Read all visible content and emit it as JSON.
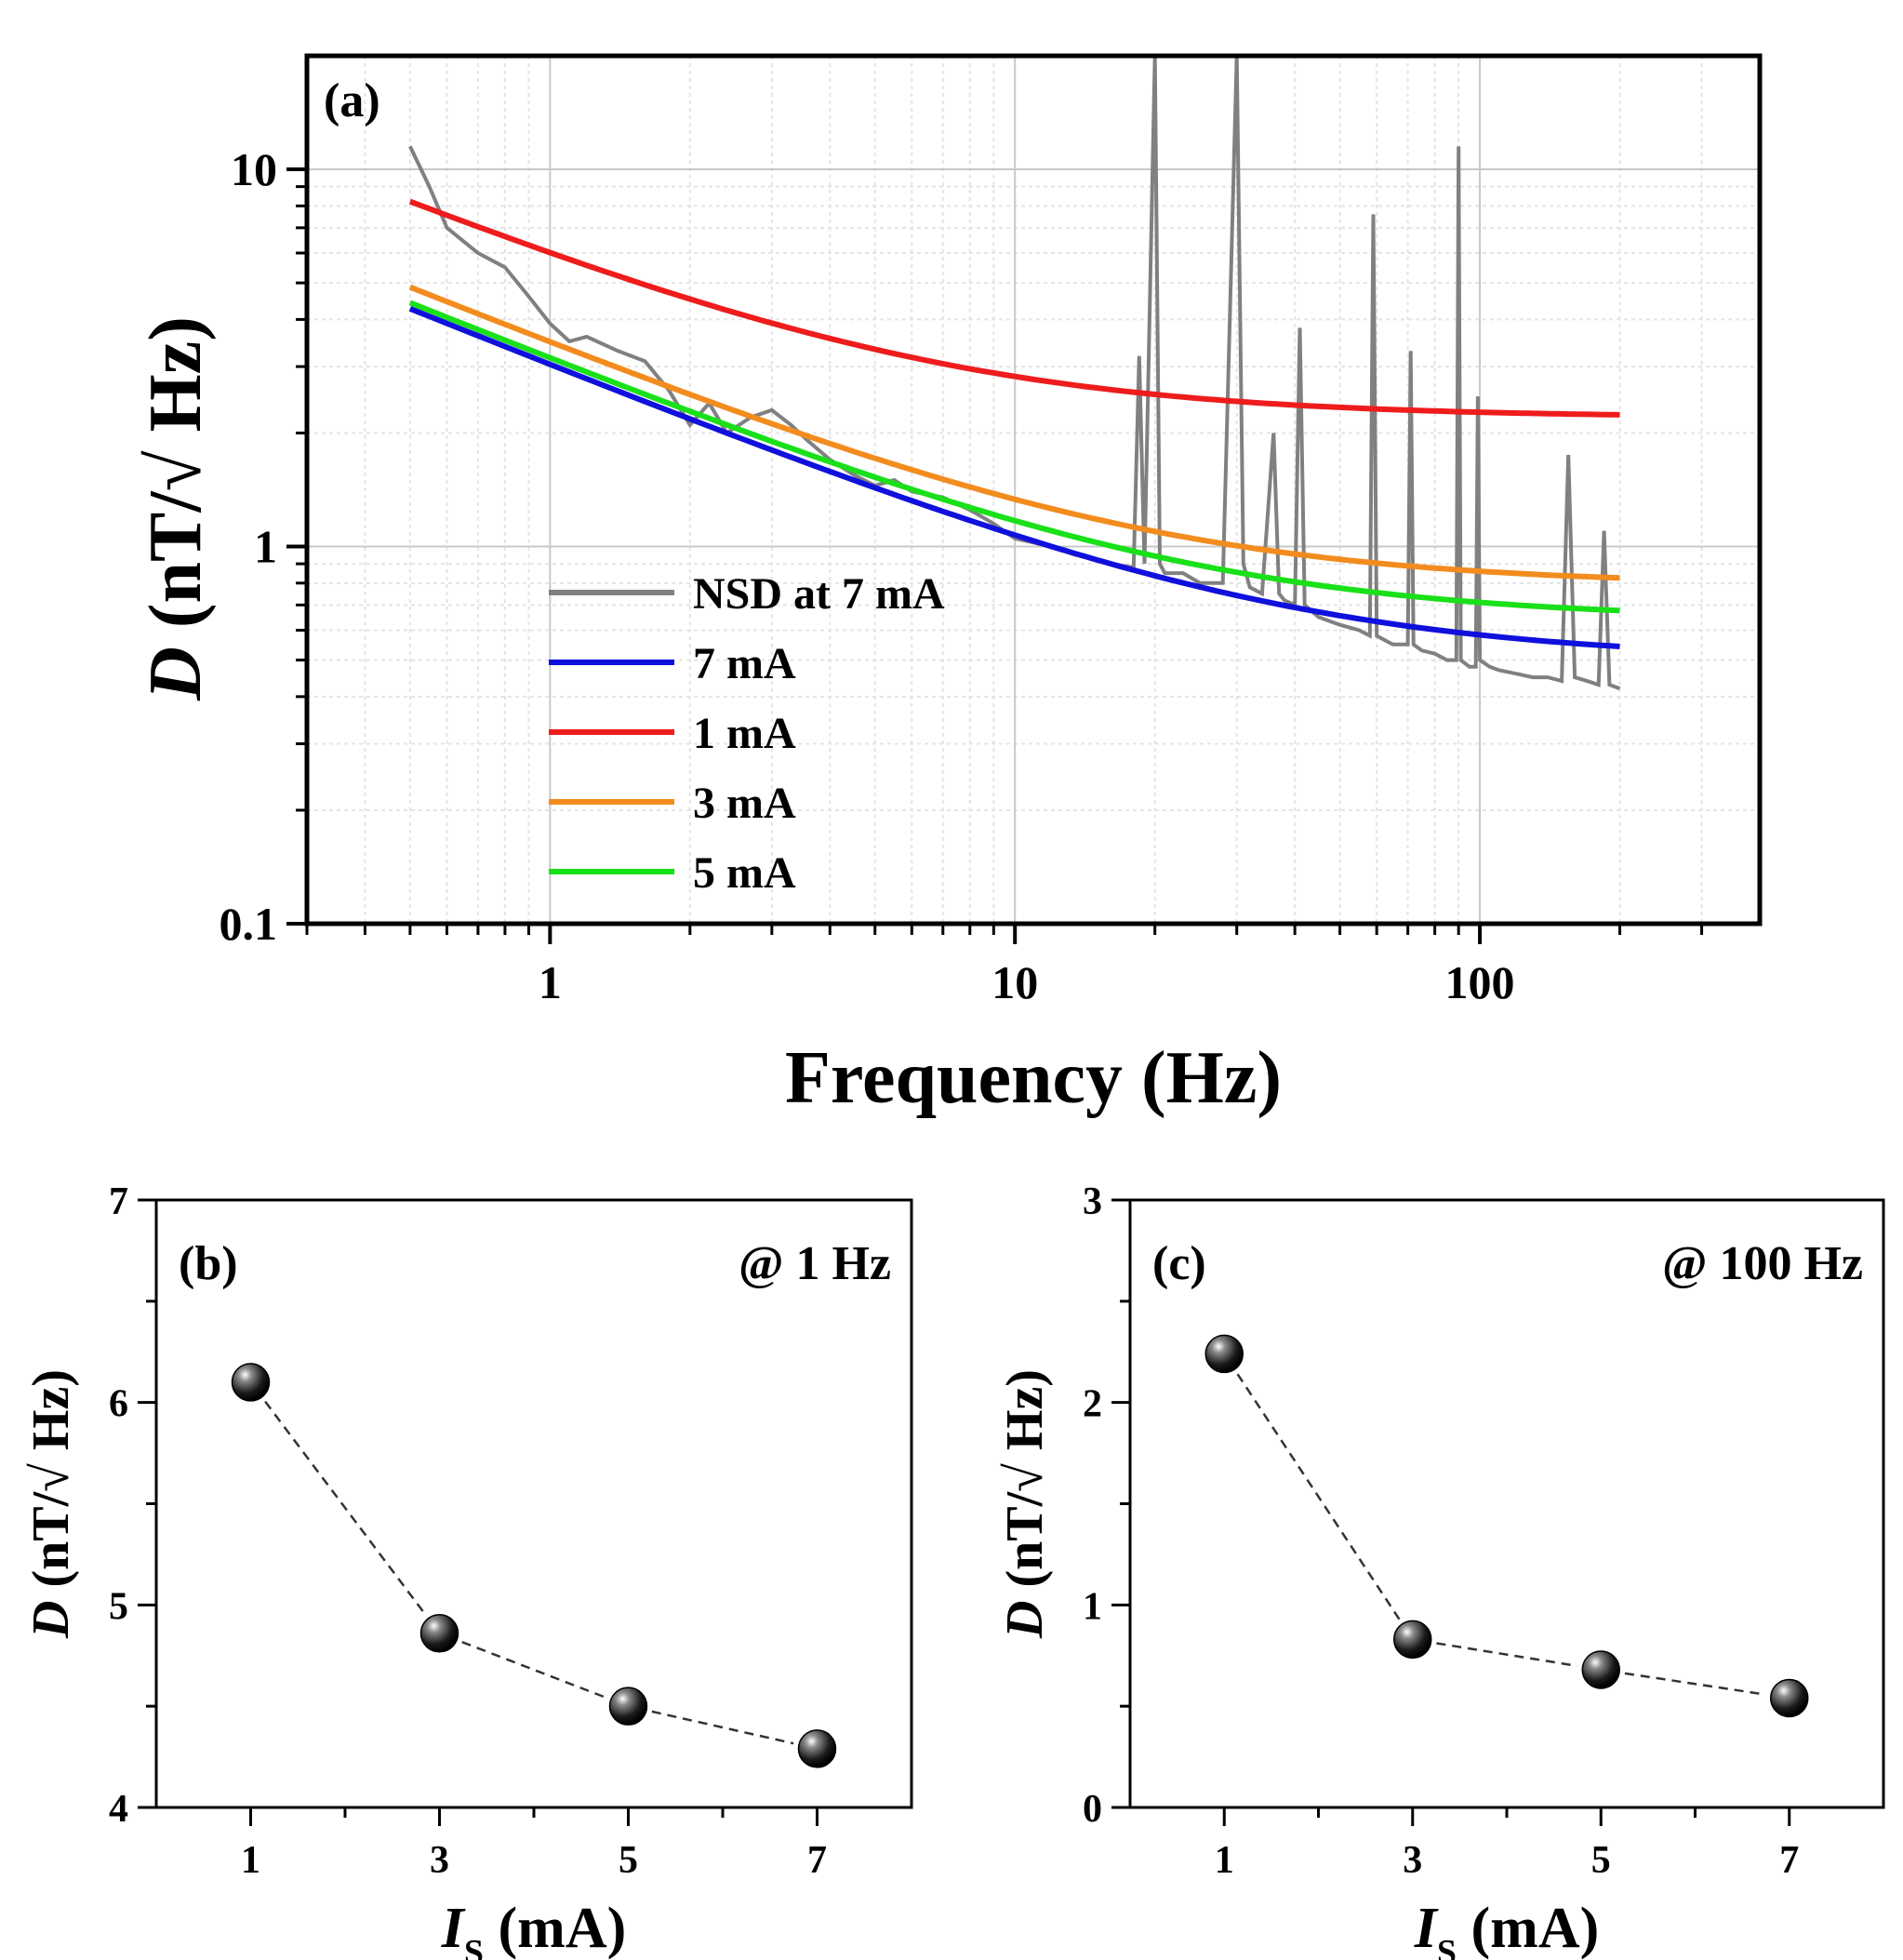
{
  "chart_data": [
    {
      "type": "line",
      "panel_label": "(a)",
      "title": "",
      "xlabel": "Frequency (Hz)",
      "ylabel_italic": "D",
      "ylabel_rest": " (nT/√ Hz)",
      "xscale": "log",
      "yscale": "log",
      "xlim": [
        0.3,
        400
      ],
      "ylim": [
        0.1,
        20
      ],
      "xticks": [
        1,
        10,
        100
      ],
      "xtick_labels": [
        "1",
        "10",
        "100"
      ],
      "yticks": [
        0.1,
        1,
        10
      ],
      "ytick_labels": [
        "0.1",
        "1",
        "10"
      ],
      "grid": true,
      "legend_position": "lower-left",
      "series": [
        {
          "name": "NSD at 7 mA",
          "color": "#808080",
          "x": [
            0.5,
            0.55,
            0.6,
            0.7,
            0.8,
            0.9,
            1.0,
            1.1,
            1.2,
            1.4,
            1.6,
            1.8,
            2.0,
            2.2,
            2.4,
            2.7,
            3.0,
            3.3,
            3.6,
            4.0,
            4.5,
            5,
            5.5,
            6,
            7,
            8,
            9,
            10,
            12,
            14,
            16,
            18,
            18.5,
            19,
            20,
            20.5,
            21,
            23,
            25,
            28,
            30,
            31,
            32,
            34,
            36,
            37,
            38,
            40,
            41,
            42,
            45,
            50,
            55,
            58,
            59,
            60,
            65,
            70,
            71,
            72,
            75,
            80,
            85,
            89,
            90,
            91,
            95,
            98,
            99,
            100,
            105,
            110,
            120,
            130,
            140,
            150,
            155,
            160,
            170,
            180,
            185,
            190,
            200
          ],
          "values": [
            11.5,
            9,
            7,
            6,
            5.5,
            4.6,
            3.9,
            3.5,
            3.6,
            3.3,
            3.1,
            2.6,
            2.1,
            2.4,
            2.0,
            2.2,
            2.3,
            2.1,
            1.9,
            1.7,
            1.55,
            1.45,
            1.5,
            1.4,
            1.35,
            1.25,
            1.15,
            1.05,
            1.0,
            0.95,
            0.9,
            0.88,
            3.2,
            0.9,
            20,
            0.9,
            0.85,
            0.85,
            0.8,
            0.8,
            20,
            0.9,
            0.78,
            0.75,
            2.0,
            0.75,
            0.72,
            0.7,
            3.8,
            0.7,
            0.65,
            0.62,
            0.6,
            0.58,
            7.6,
            0.58,
            0.55,
            0.55,
            3.3,
            0.55,
            0.53,
            0.52,
            0.5,
            0.5,
            11.5,
            0.5,
            0.48,
            0.48,
            2.5,
            0.5,
            0.48,
            0.47,
            0.46,
            0.45,
            0.45,
            0.44,
            1.75,
            0.45,
            0.44,
            0.43,
            1.1,
            0.43,
            0.42
          ]
        },
        {
          "name": "7 mA",
          "color": "#1010dd",
          "A": 3.0,
          "floor": 0.5,
          "xstart": 0.5,
          "xend": 200
        },
        {
          "name": "1 mA",
          "color": "#ee1c1c",
          "A": 5.6,
          "floor": 2.2,
          "xstart": 0.5,
          "xend": 200
        },
        {
          "name": "3 mA",
          "color": "#f28c1e",
          "A": 3.4,
          "floor": 0.79,
          "xstart": 0.5,
          "xend": 200
        },
        {
          "name": "5 mA",
          "color": "#19e019",
          "A": 3.1,
          "floor": 0.64,
          "xstart": 0.5,
          "xend": 200
        }
      ]
    },
    {
      "type": "scatter",
      "panel_label": "(b)",
      "annotation": "@ 1 Hz",
      "xlabel_italic": "I",
      "xlabel_sub": "S",
      "xlabel_rest": " (mA)",
      "ylabel_italic": "D",
      "ylabel_rest": " (nT/√ Hz)",
      "xlim": [
        0,
        8
      ],
      "ylim": [
        4,
        7
      ],
      "xticks": [
        1,
        3,
        5,
        7
      ],
      "xtick_labels": [
        "1",
        "3",
        "5",
        "7"
      ],
      "yticks": [
        4,
        5,
        6,
        7
      ],
      "ytick_labels": [
        "4",
        "5",
        "6",
        "7"
      ],
      "grid": false,
      "x": [
        1,
        3,
        5,
        7
      ],
      "values": [
        6.1,
        4.86,
        4.5,
        4.29
      ]
    },
    {
      "type": "scatter",
      "panel_label": "(c)",
      "annotation": "@ 100 Hz",
      "xlabel_italic": "I",
      "xlabel_sub": "S",
      "xlabel_rest": " (mA)",
      "ylabel_italic": "D",
      "ylabel_rest": " (nT/√ Hz)",
      "xlim": [
        0,
        8
      ],
      "ylim": [
        0,
        3
      ],
      "xticks": [
        1,
        3,
        5,
        7
      ],
      "xtick_labels": [
        "1",
        "3",
        "5",
        "7"
      ],
      "yticks": [
        0,
        1,
        2,
        3
      ],
      "ytick_labels": [
        "0",
        "1",
        "2",
        "3"
      ],
      "grid": false,
      "x": [
        1,
        3,
        5,
        7
      ],
      "values": [
        2.24,
        0.83,
        0.68,
        0.54
      ]
    }
  ]
}
